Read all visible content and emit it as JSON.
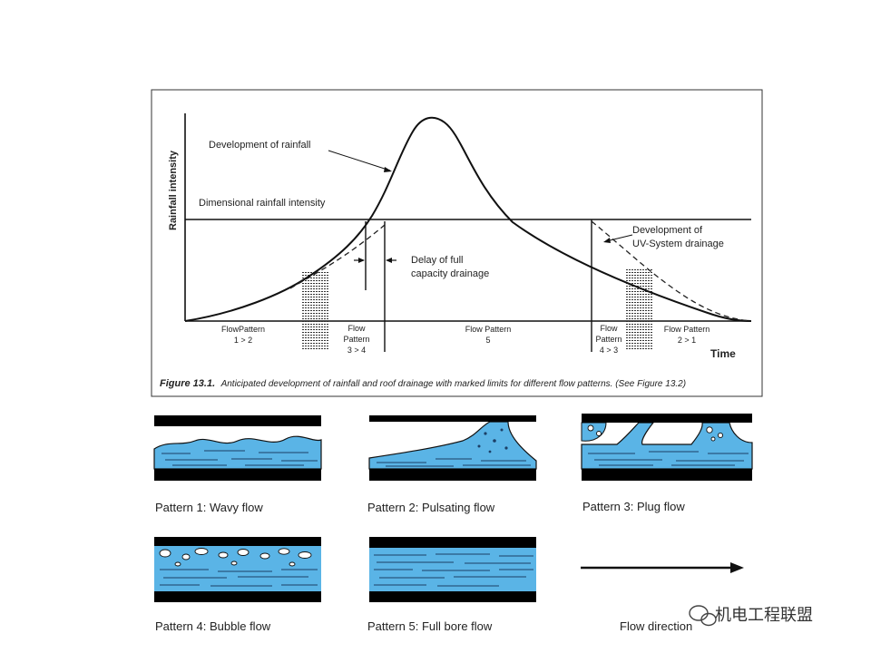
{
  "figure": {
    "y_axis_label": "Rainfall intensity",
    "x_axis_label": "Time",
    "annotations": {
      "development_of_rainfall": "Development of rainfall",
      "dimensional_rainfall_intensity": "Dimensional rainfall intensity",
      "delay_line1": "Delay of full",
      "delay_line2": "capacity drainage",
      "uv_line1": "Development of",
      "uv_line2": "UV-System drainage"
    },
    "flow_zones": {
      "z1_line1": "FlowPattern",
      "z1_line2": "1 > 2",
      "z2_line1": "Flow",
      "z2_line2": "Pattern",
      "z2_line3": "3 > 4",
      "z3_line1": "Flow Pattern",
      "z3_line2": "5",
      "z4_line1": "Flow",
      "z4_line2": "Pattern",
      "z4_line3": "4 > 3",
      "z5_line1": "Flow Pattern",
      "z5_line2": "2 > 1"
    },
    "caption_label": "Figure 13.1.",
    "caption_text": "Anticipated development of rainfall and roof drainage with marked limits for different flow patterns. (See Figure 13.2)"
  },
  "patterns": [
    {
      "label": "Pattern 1: Wavy flow"
    },
    {
      "label": "Pattern 2: Pulsating flow"
    },
    {
      "label": "Pattern 3: Plug flow"
    },
    {
      "label": "Pattern 4: Bubble flow"
    },
    {
      "label": "Pattern 5: Full bore flow"
    }
  ],
  "flow_direction_label": "Flow direction",
  "watermark": "机电工程联盟",
  "colors": {
    "water": "#5ab4e6",
    "pipe_wall": "#000000",
    "ink": "#222222"
  }
}
